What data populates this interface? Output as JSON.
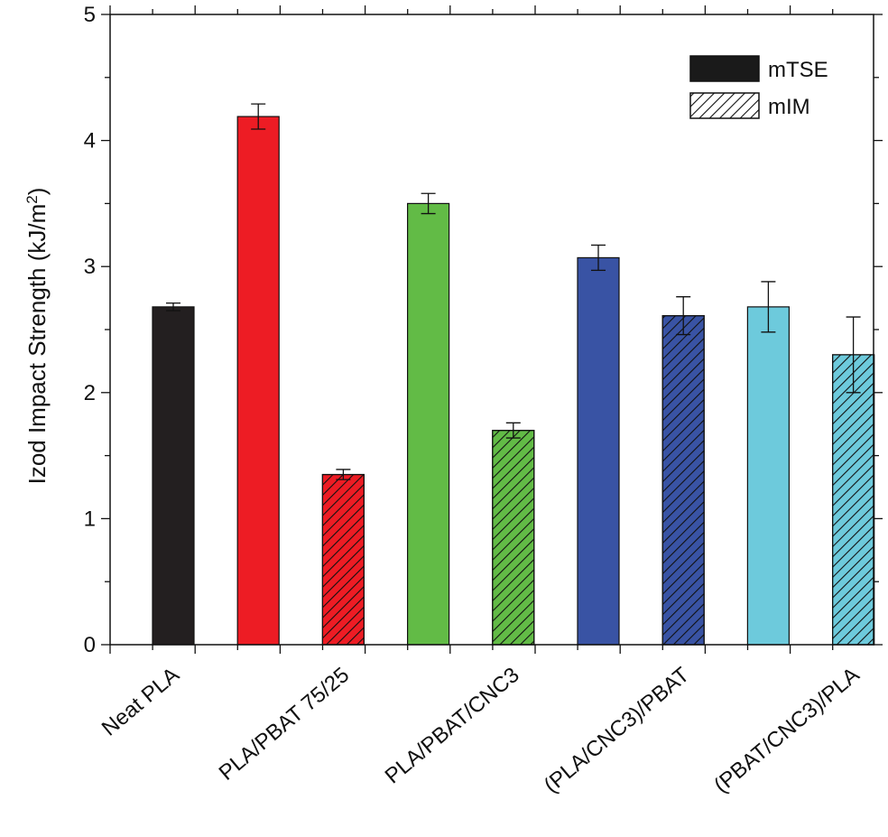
{
  "chart_data": {
    "type": "bar",
    "title": "",
    "xlabel": "",
    "ylabel": {
      "main": "Izod Impact Strength (kJ/m",
      "sup": "2",
      "close": ")"
    },
    "ylim": [
      0,
      5
    ],
    "yticks": [
      "0",
      "1",
      "2",
      "3",
      "4",
      "5"
    ],
    "legend": {
      "position": "top-right",
      "items": [
        {
          "label": "mTSE",
          "pattern": "solid",
          "color": "#1a1a1a"
        },
        {
          "label": "mIM",
          "pattern": "hatched",
          "color": "#ffffff"
        }
      ]
    },
    "category_labels": [
      "Neat PLA",
      "PLA/PBAT 75/25",
      "PLA/PBAT/CNC3",
      "(PLA/CNC3)/PBAT",
      "(PBAT/CNC3)/PLA"
    ],
    "bars": [
      {
        "group": "Neat PLA",
        "series": "mTSE",
        "value": 2.68,
        "error": 0.03,
        "color": "#231f20",
        "hatched": false
      },
      {
        "group": "PLA/PBAT 75/25",
        "series": "mTSE",
        "value": 4.19,
        "error": 0.1,
        "color": "#ed1c24",
        "hatched": false
      },
      {
        "group": "PLA/PBAT 75/25",
        "series": "mIM",
        "value": 1.35,
        "error": 0.04,
        "color": "#ed1c24",
        "hatched": true
      },
      {
        "group": "PLA/PBAT/CNC3",
        "series": "mTSE",
        "value": 3.5,
        "error": 0.08,
        "color": "#62bb46",
        "hatched": false
      },
      {
        "group": "PLA/PBAT/CNC3",
        "series": "mIM",
        "value": 1.7,
        "error": 0.06,
        "color": "#62bb46",
        "hatched": true
      },
      {
        "group": "(PLA/CNC3)/PBAT",
        "series": "mTSE",
        "value": 3.07,
        "error": 0.1,
        "color": "#3953a4",
        "hatched": false
      },
      {
        "group": "(PLA/CNC3)/PBAT",
        "series": "mIM",
        "value": 2.61,
        "error": 0.15,
        "color": "#3953a4",
        "hatched": true
      },
      {
        "group": "(PBAT/CNC3)/PLA",
        "series": "mTSE",
        "value": 2.68,
        "error": 0.2,
        "color": "#6dcadc",
        "hatched": false
      },
      {
        "group": "(PBAT/CNC3)/PLA",
        "series": "mIM",
        "value": 2.3,
        "error": 0.3,
        "color": "#6dcadc",
        "hatched": true
      }
    ]
  }
}
